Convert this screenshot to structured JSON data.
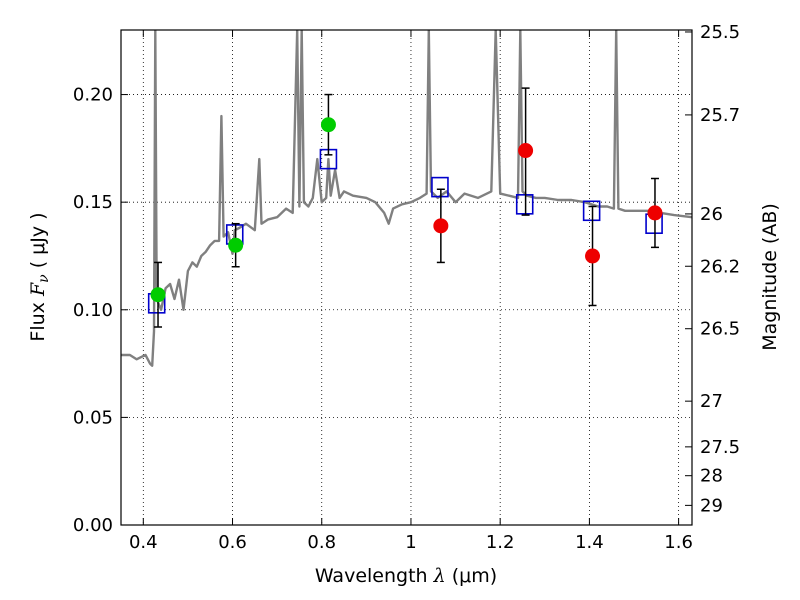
{
  "chart_data": {
    "type": "scatter",
    "xlabel": {
      "prefix": "Wavelength  ",
      "symbol": "λ",
      "unit": " (μm)"
    },
    "ylabel": {
      "prefix": "Flux  ",
      "symbol": "F",
      "sub": "ν",
      "unit": "  ( μJy )"
    },
    "y2label": "Magnitude (AB)",
    "xlim": [
      0.35,
      1.63
    ],
    "ylim": [
      0.0,
      0.23
    ],
    "x_ticks": [
      {
        "v": 0.4,
        "label": "0.4"
      },
      {
        "v": 0.6,
        "label": "0.6"
      },
      {
        "v": 0.8,
        "label": "0.8"
      },
      {
        "v": 1.0,
        "label": "1"
      },
      {
        "v": 1.2,
        "label": "1.2"
      },
      {
        "v": 1.4,
        "label": "1.4"
      },
      {
        "v": 1.6,
        "label": "1.6"
      }
    ],
    "y_ticks": [
      {
        "v": 0.0,
        "label": "0.00"
      },
      {
        "v": 0.05,
        "label": "0.05"
      },
      {
        "v": 0.1,
        "label": "0.10"
      },
      {
        "v": 0.15,
        "label": "0.15"
      },
      {
        "v": 0.2,
        "label": "0.20"
      }
    ],
    "y2_ticks": [
      {
        "mag": 25.5,
        "label": "25.5"
      },
      {
        "mag": 25.7,
        "label": "25.7"
      },
      {
        "mag": 26,
        "label": "26"
      },
      {
        "mag": 26.2,
        "label": "26.2"
      },
      {
        "mag": 26.5,
        "label": "26.5"
      },
      {
        "mag": 27,
        "label": "27"
      },
      {
        "mag": 27.5,
        "label": "27.5"
      },
      {
        "mag": 28,
        "label": "28"
      },
      {
        "mag": 29,
        "label": "29"
      }
    ],
    "grid": true,
    "colors": {
      "spectrum": "#808080",
      "green": "#00cc00",
      "red": "#ee0000",
      "model": "#0000cc",
      "errorbar": "#000000"
    },
    "spectrum": [
      [
        0.35,
        0.079
      ],
      [
        0.37,
        0.079
      ],
      [
        0.385,
        0.077
      ],
      [
        0.395,
        0.078
      ],
      [
        0.405,
        0.079
      ],
      [
        0.41,
        0.077
      ],
      [
        0.415,
        0.075
      ],
      [
        0.42,
        0.074
      ],
      [
        0.424,
        0.09
      ],
      [
        0.427,
        0.23
      ],
      [
        0.43,
        0.105
      ],
      [
        0.44,
        0.1
      ],
      [
        0.45,
        0.11
      ],
      [
        0.46,
        0.112
      ],
      [
        0.47,
        0.105
      ],
      [
        0.48,
        0.114
      ],
      [
        0.49,
        0.1
      ],
      [
        0.5,
        0.118
      ],
      [
        0.51,
        0.122
      ],
      [
        0.52,
        0.12
      ],
      [
        0.53,
        0.125
      ],
      [
        0.54,
        0.127
      ],
      [
        0.55,
        0.13
      ],
      [
        0.56,
        0.132
      ],
      [
        0.57,
        0.132
      ],
      [
        0.575,
        0.19
      ],
      [
        0.58,
        0.134
      ],
      [
        0.59,
        0.136
      ],
      [
        0.6,
        0.126
      ],
      [
        0.605,
        0.137
      ],
      [
        0.615,
        0.138
      ],
      [
        0.63,
        0.14
      ],
      [
        0.65,
        0.137
      ],
      [
        0.66,
        0.17
      ],
      [
        0.665,
        0.14
      ],
      [
        0.68,
        0.142
      ],
      [
        0.7,
        0.143
      ],
      [
        0.72,
        0.147
      ],
      [
        0.735,
        0.145
      ],
      [
        0.745,
        0.23
      ],
      [
        0.75,
        0.148
      ],
      [
        0.755,
        0.23
      ],
      [
        0.76,
        0.15
      ],
      [
        0.77,
        0.148
      ],
      [
        0.78,
        0.152
      ],
      [
        0.79,
        0.17
      ],
      [
        0.8,
        0.15
      ],
      [
        0.81,
        0.152
      ],
      [
        0.815,
        0.17
      ],
      [
        0.82,
        0.153
      ],
      [
        0.83,
        0.165
      ],
      [
        0.84,
        0.152
      ],
      [
        0.85,
        0.155
      ],
      [
        0.87,
        0.153
      ],
      [
        0.9,
        0.152
      ],
      [
        0.92,
        0.15
      ],
      [
        0.94,
        0.145
      ],
      [
        0.95,
        0.14
      ],
      [
        0.96,
        0.147
      ],
      [
        0.98,
        0.149
      ],
      [
        1.0,
        0.15
      ],
      [
        1.02,
        0.152
      ],
      [
        1.035,
        0.154
      ],
      [
        1.04,
        0.23
      ],
      [
        1.045,
        0.155
      ],
      [
        1.06,
        0.152
      ],
      [
        1.08,
        0.155
      ],
      [
        1.1,
        0.15
      ],
      [
        1.12,
        0.154
      ],
      [
        1.15,
        0.152
      ],
      [
        1.18,
        0.155
      ],
      [
        1.19,
        0.23
      ],
      [
        1.2,
        0.154
      ],
      [
        1.22,
        0.153
      ],
      [
        1.24,
        0.152
      ],
      [
        1.245,
        0.23
      ],
      [
        1.25,
        0.155
      ],
      [
        1.26,
        0.153
      ],
      [
        1.28,
        0.152
      ],
      [
        1.3,
        0.152
      ],
      [
        1.33,
        0.151
      ],
      [
        1.36,
        0.151
      ],
      [
        1.39,
        0.15
      ],
      [
        1.42,
        0.148
      ],
      [
        1.44,
        0.148
      ],
      [
        1.455,
        0.147
      ],
      [
        1.46,
        0.23
      ],
      [
        1.465,
        0.147
      ],
      [
        1.48,
        0.146
      ],
      [
        1.5,
        0.146
      ],
      [
        1.53,
        0.146
      ],
      [
        1.56,
        0.145
      ],
      [
        1.59,
        0.144
      ],
      [
        1.63,
        0.143
      ]
    ],
    "model_points": [
      {
        "x": 0.43,
        "y": 0.103
      },
      {
        "x": 0.605,
        "y": 0.135
      },
      {
        "x": 0.815,
        "y": 0.17
      },
      {
        "x": 1.065,
        "y": 0.157
      },
      {
        "x": 1.255,
        "y": 0.149
      },
      {
        "x": 1.405,
        "y": 0.146
      },
      {
        "x": 1.545,
        "y": 0.14
      }
    ],
    "green_points": [
      {
        "x": 0.433,
        "y": 0.107,
        "lo": 0.092,
        "hi": 0.122
      },
      {
        "x": 0.607,
        "y": 0.13,
        "lo": 0.12,
        "hi": 0.14
      },
      {
        "x": 0.815,
        "y": 0.186,
        "lo": 0.172,
        "hi": 0.2
      }
    ],
    "red_points": [
      {
        "x": 1.067,
        "y": 0.139,
        "lo": 0.122,
        "hi": 0.156
      },
      {
        "x": 1.257,
        "y": 0.174,
        "lo": 0.144,
        "hi": 0.203
      },
      {
        "x": 1.407,
        "y": 0.125,
        "lo": 0.102,
        "hi": 0.148
      },
      {
        "x": 1.547,
        "y": 0.145,
        "lo": 0.129,
        "hi": 0.161
      }
    ]
  }
}
